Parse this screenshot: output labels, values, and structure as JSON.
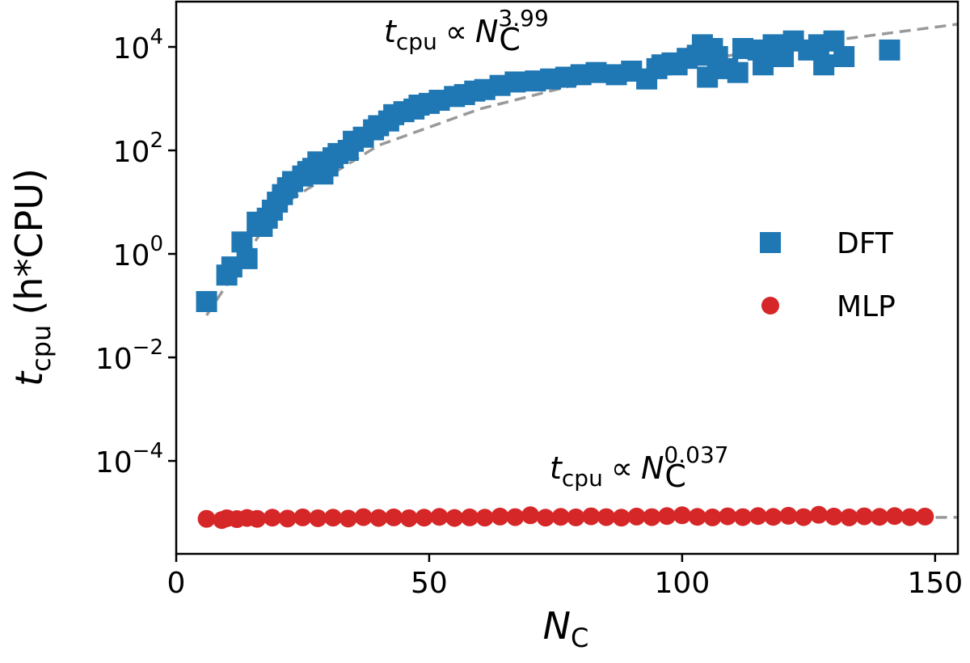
{
  "chart_data": {
    "type": "scatter",
    "x_label": {
      "symbol": "N",
      "subscript": "C"
    },
    "y_label": {
      "symbol": "t",
      "subscript": "cpu",
      "unit": "(h*CPU)"
    },
    "xlim": [
      0,
      154.5
    ],
    "ylim": [
      1.6e-06,
      75000
    ],
    "log_y": true,
    "xticks": [
      0,
      50,
      100,
      150
    ],
    "yticks": [
      {
        "value": 0.0001,
        "label": "10",
        "exponent": "−4"
      },
      {
        "value": 0.01,
        "label": "10",
        "exponent": "−2"
      },
      {
        "value": 1,
        "label": "10",
        "exponent": "0"
      },
      {
        "value": 100,
        "label": "10",
        "exponent": "2"
      },
      {
        "value": 10000,
        "label": "10",
        "exponent": "4"
      }
    ],
    "legend": "center right",
    "series": [
      {
        "name": "DFT",
        "color": "#1f77b4",
        "marker": "square",
        "x": [
          6,
          10,
          11,
          13,
          14,
          16,
          17,
          18,
          19,
          20,
          21,
          22,
          23,
          25,
          26,
          27,
          28,
          29,
          30,
          31,
          32,
          34,
          35,
          37,
          39,
          40,
          42,
          43,
          45,
          47,
          48,
          50,
          52,
          55,
          57,
          59,
          61,
          64,
          67,
          71,
          74,
          77,
          80,
          83,
          87,
          90,
          93,
          95,
          96,
          98,
          99,
          101,
          103,
          104,
          105,
          106,
          107,
          109,
          111,
          112,
          115,
          116,
          118,
          120,
          122,
          125,
          127,
          128,
          130,
          132,
          141
        ],
        "values": [
          0.12,
          0.39,
          0.56,
          1.7,
          0.81,
          4.1,
          3.4,
          4.9,
          7.0,
          10,
          14,
          19,
          25,
          32,
          39,
          45,
          60,
          35,
          50,
          72,
          87,
          100,
          150,
          180,
          250,
          300,
          370,
          490,
          560,
          630,
          750,
          810,
          930,
          1100,
          1200,
          1400,
          1500,
          1800,
          2100,
          2200,
          2400,
          2600,
          2900,
          3200,
          2900,
          3400,
          2400,
          3800,
          4500,
          4900,
          4500,
          6000,
          6900,
          11000,
          2600,
          9300,
          6500,
          3800,
          3200,
          9300,
          8700,
          4500,
          11000,
          6500,
          13000,
          8700,
          11000,
          4500,
          13000,
          6500,
          8700
        ]
      },
      {
        "name": "MLP",
        "color": "#d62728",
        "marker": "circle",
        "x": [
          6,
          9,
          10,
          12,
          14,
          16,
          19,
          22,
          25,
          28,
          31,
          34,
          37,
          40,
          43,
          46,
          49,
          52,
          55,
          58,
          61,
          64,
          67,
          70,
          73,
          76,
          79,
          82,
          85,
          88,
          91,
          94,
          97,
          100,
          103,
          106,
          109,
          112,
          115,
          118,
          121,
          124,
          127,
          130,
          133,
          136,
          139,
          142,
          145,
          148
        ],
        "values": [
          7.6e-06,
          7.2e-06,
          7.8e-06,
          7.5e-06,
          7.9e-06,
          7.6e-06,
          8e-06,
          7.7e-06,
          8.1e-06,
          7.8e-06,
          8e-06,
          7.7e-06,
          8.2e-06,
          7.9e-06,
          8.1e-06,
          7.8e-06,
          8e-06,
          8.3e-06,
          7.9e-06,
          8.1e-06,
          8e-06,
          8.4e-06,
          8.2e-06,
          8.9e-06,
          8e-06,
          8.3e-06,
          8.1e-06,
          8.5e-06,
          8.2e-06,
          8e-06,
          8.4e-06,
          8.2e-06,
          8.6e-06,
          8.9e-06,
          8.3e-06,
          8.1e-06,
          8.5e-06,
          8.2e-06,
          8.6e-06,
          8.3e-06,
          8.7e-06,
          8.2e-06,
          9.1e-06,
          8.4e-06,
          8.1e-06,
          8.5e-06,
          8.3e-06,
          8.6e-06,
          8.2e-06,
          8.4e-06
        ]
      }
    ],
    "fits": [
      {
        "color": "#999999",
        "x": [
          6,
          20,
          40,
          60,
          80,
          100,
          120,
          154.5
        ],
        "values": [
          0.065,
          7.87,
          125,
          631,
          1986,
          4842,
          10020,
          27480
        ]
      },
      {
        "color": "#999999",
        "x": [
          6,
          80,
          154.5
        ],
        "values": [
          7.2e-06,
          7.98e-06,
          8.1e-06
        ]
      }
    ],
    "annotations": [
      {
        "t": "t",
        "t_sub": "cpu",
        "relation": "∝",
        "n": "N",
        "n_sub": "C",
        "exponent": "3.99"
      },
      {
        "t": "t",
        "t_sub": "cpu",
        "relation": "∝",
        "n": "N",
        "n_sub": "C",
        "exponent": "0.037"
      }
    ]
  }
}
